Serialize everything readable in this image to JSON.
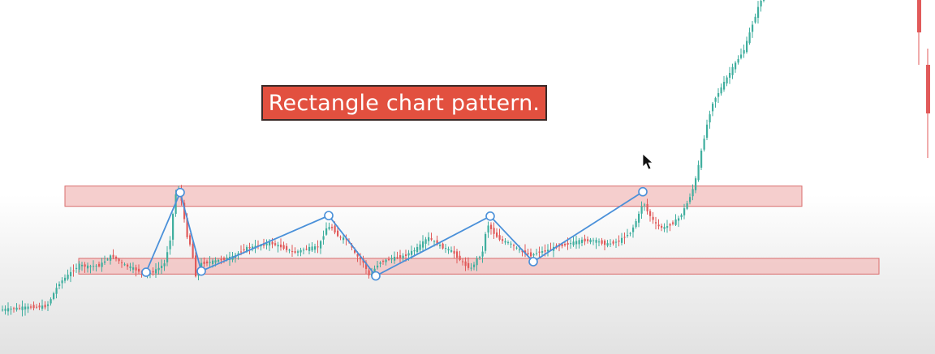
{
  "title": "Rectangle chart pattern.",
  "colors": {
    "up_candle": "#3fae9e",
    "down_candle": "#e15a5a",
    "zone_fill": "#f3c2c0",
    "zone_stroke": "#d96c6c",
    "pattern_line": "#4a90d9",
    "title_bg": "#e2503f"
  },
  "chart_data": {
    "type": "line",
    "title": "Rectangle chart pattern.",
    "xlabel": "",
    "ylabel": "",
    "grid": false,
    "resistance_zone": {
      "y_top": 59.5,
      "y_bottom": 48.5
    },
    "support_zone": {
      "y_top": 20.3,
      "y_bottom": 11.8
    },
    "price_series": {
      "name": "",
      "x": [
        0,
        15,
        30,
        45,
        60,
        75,
        90,
        100,
        110,
        125,
        140,
        155,
        165,
        175,
        185,
        195,
        205,
        212,
        218,
        222,
        226,
        232,
        238,
        244,
        250,
        260,
        275,
        290,
        305,
        320,
        335,
        350,
        365,
        380,
        395,
        405,
        412,
        420,
        430,
        440,
        450,
        458,
        463,
        470,
        485,
        500,
        515,
        530,
        545,
        560,
        575,
        583,
        590,
        598,
        602,
        606,
        612,
        620,
        630,
        645,
        657,
        665,
        675,
        690,
        705,
        720,
        735,
        750,
        765,
        780,
        790,
        795,
        800,
        806,
        812,
        820,
        830,
        840,
        850,
        858,
        865,
        872,
        880,
        890,
        900,
        910,
        920,
        928,
        935,
        940
      ],
      "y": [
        -7.7,
        -7.1,
        -6.4,
        -6.0,
        -5.7,
        6.7,
        12.8,
        16.8,
        15.8,
        16.5,
        21.9,
        16.8,
        15.1,
        13.1,
        11.8,
        14.1,
        17.5,
        30.6,
        54.1,
        57.9,
        51.5,
        33.6,
        26.2,
        9.8,
        17.5,
        18.2,
        19.6,
        21.2,
        25.8,
        26.9,
        28.7,
        26.4,
        23.4,
        25.6,
        26.6,
        37.2,
        36.9,
        31.6,
        30.6,
        22.5,
        18.2,
        9.8,
        14.1,
        18.2,
        20.3,
        21.5,
        25.3,
        31.6,
        26.9,
        23.9,
        16.8,
        14.8,
        19.8,
        24.3,
        39.5,
        37.2,
        33.2,
        30.0,
        28.5,
        23.9,
        21.9,
        23.6,
        24.4,
        26.9,
        28.5,
        30.0,
        30.0,
        27.9,
        29.7,
        34.7,
        44.5,
        51.4,
        45.8,
        41.5,
        37.9,
        36.7,
        39.1,
        42.5,
        51.0,
        60.2,
        74.8,
        90.1,
        104.3,
        112.0,
        119.7,
        127.1,
        134.0,
        145.3,
        154.2,
        160.3
      ]
    },
    "pattern_points": {
      "x": [
        180,
        222,
        248,
        405,
        463,
        604,
        657,
        792
      ],
      "y": [
        12.8,
        56.0,
        13.4,
        43.5,
        10.8,
        43.2,
        18.5,
        56.4
      ],
      "labels": [
        "",
        "",
        "",
        "",
        "",
        "",
        "",
        ""
      ]
    },
    "xlim": [
      0,
      1152
    ],
    "ylim": [
      -31.5,
      160.3
    ]
  }
}
